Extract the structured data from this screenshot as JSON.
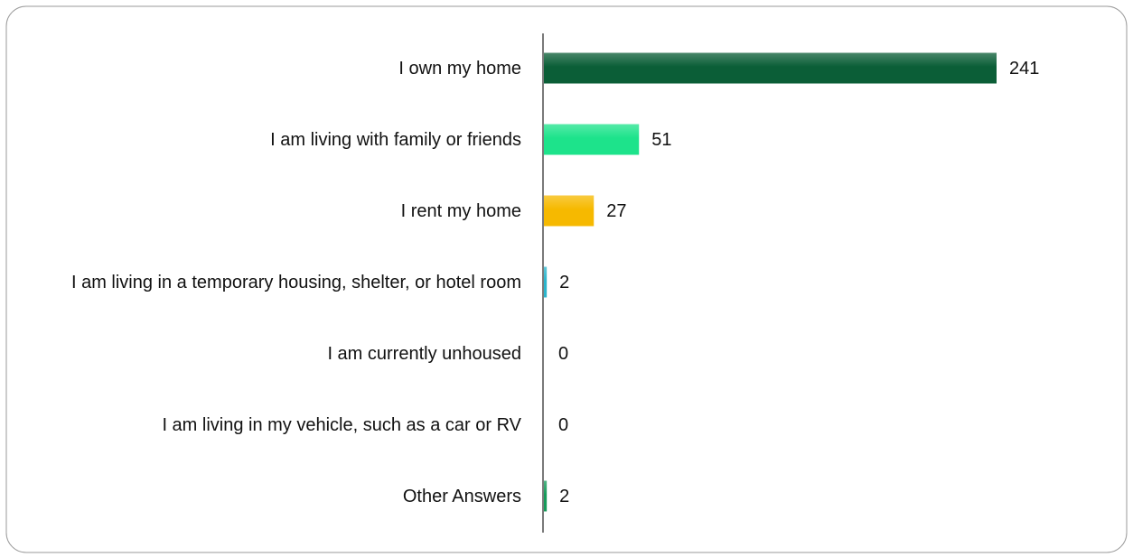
{
  "chart_data": {
    "type": "hbar",
    "categories": [
      "I own my home",
      "I am living with family or friends",
      "I rent my home",
      "I am living in a temporary housing, shelter, or hotel room",
      "I am currently unhoused",
      "I am living in my vehicle, such as a car or RV",
      "Other Answers"
    ],
    "values": [
      241,
      51,
      27,
      2,
      0,
      0,
      2
    ],
    "colors": [
      "#0b5e37",
      "#1de38b",
      "#f6b900",
      "#2bb5cc",
      "#2bb5cc",
      "#2bb5cc",
      "#169a5a"
    ]
  }
}
